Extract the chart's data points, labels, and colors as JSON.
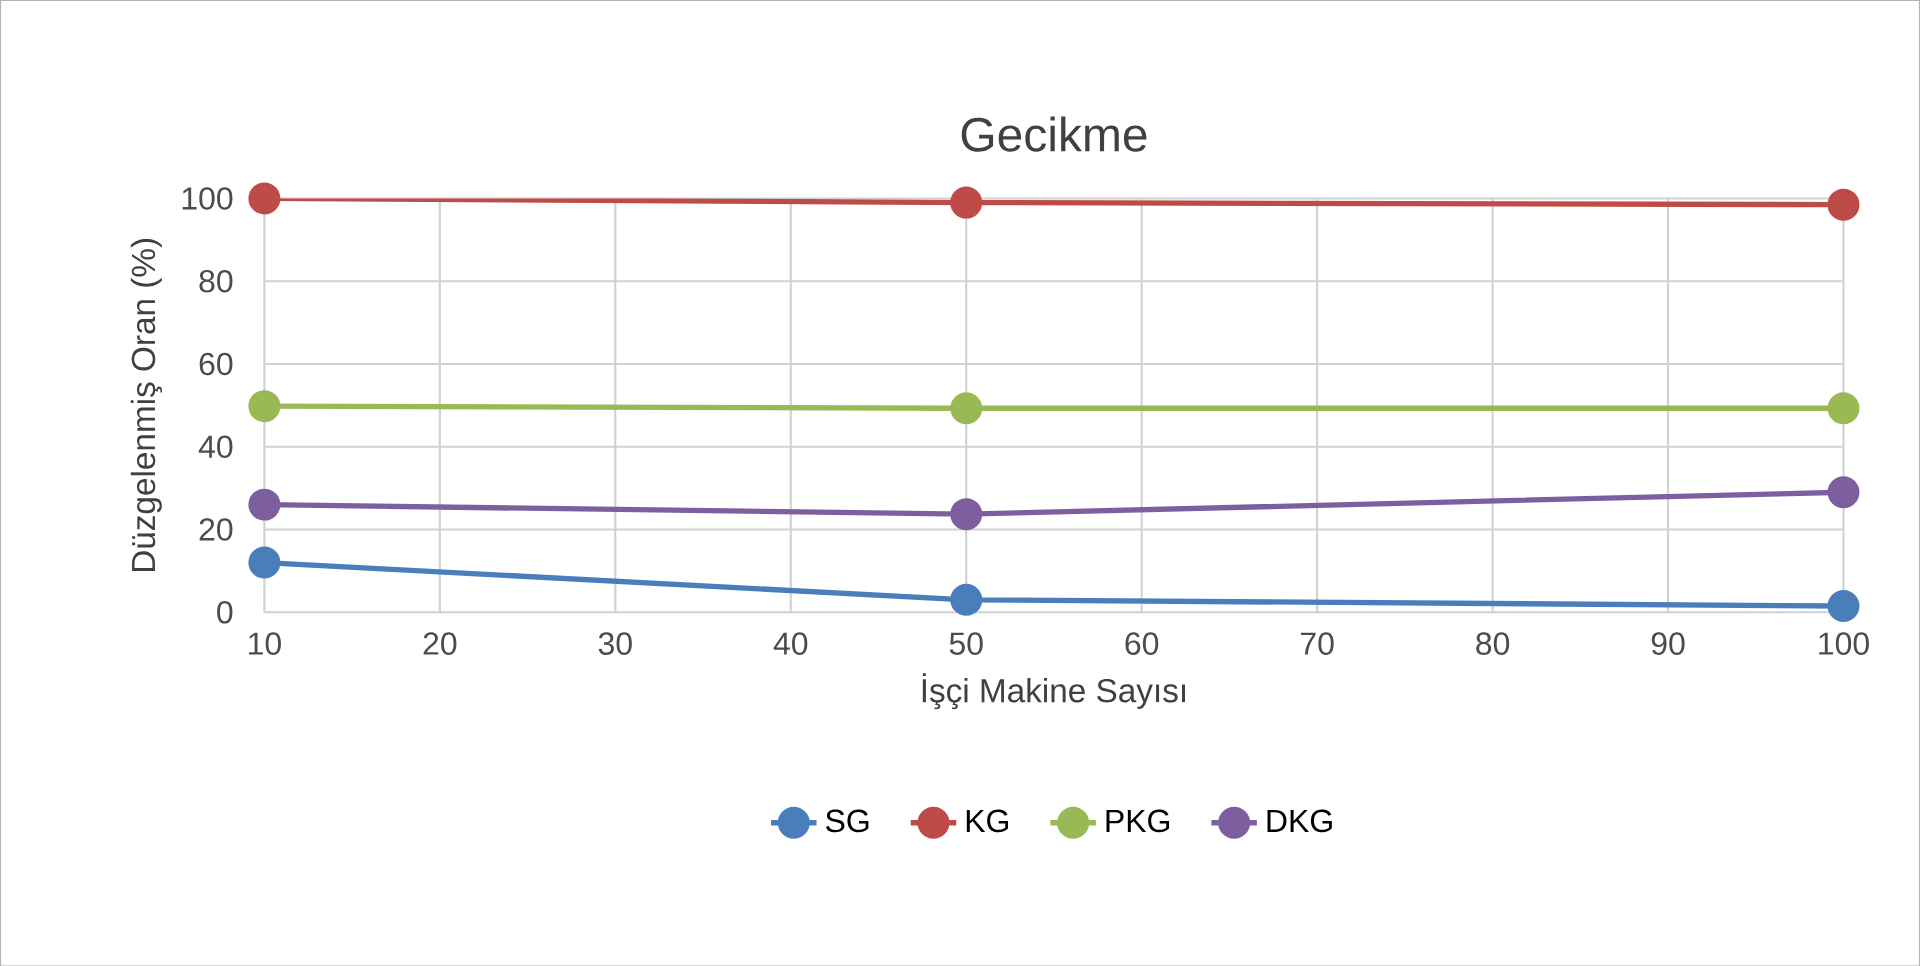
{
  "chart_data": {
    "type": "line",
    "title": "Gecikme",
    "xlabel": "İşçi Makine Sayısı",
    "ylabel": "Düzgelenmiş Oran (%)",
    "x": [
      10,
      50,
      100
    ],
    "xlim": [
      10,
      100
    ],
    "xticks": [
      10,
      20,
      30,
      40,
      50,
      60,
      70,
      80,
      90,
      100
    ],
    "ylim": [
      0,
      100
    ],
    "yticks": [
      0,
      20,
      40,
      60,
      80,
      100
    ],
    "grid": true,
    "legend": "bottom",
    "marker": "circle",
    "line_style": "solid",
    "series": [
      {
        "name": "SG",
        "color": "#4a7ebb",
        "values": [
          12,
          3,
          1.5
        ]
      },
      {
        "name": "KG",
        "color": "#be4b48",
        "values": [
          100,
          99,
          98.5
        ]
      },
      {
        "name": "PKG",
        "color": "#98b954",
        "values": [
          49.8,
          49.3,
          49.3
        ]
      },
      {
        "name": "DKG",
        "color": "#7d5fa0",
        "values": [
          26,
          23.7,
          29
        ]
      }
    ]
  }
}
